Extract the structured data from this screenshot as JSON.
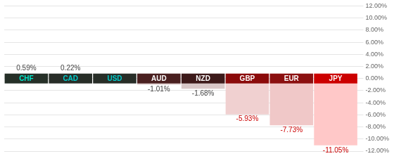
{
  "chart_data": {
    "type": "bar",
    "categories": [
      "CHF",
      "CAD",
      "USD",
      "AUD",
      "NZD",
      "GBP",
      "EUR",
      "JPY"
    ],
    "values": [
      0.59,
      0.22,
      0.0,
      -1.01,
      -1.68,
      -5.93,
      -7.73,
      -11.05
    ],
    "value_labels": [
      "0.59%",
      "0.22%",
      null,
      "-1.01%",
      "-1.68%",
      "-5.93%",
      "-7.73%",
      "-11.05%"
    ],
    "data_labels": true,
    "colors": [
      "#d0d0d0",
      "#d0d0d0",
      "#d0d0d0",
      "#dfd0d0",
      "#d8c8c8",
      "#f0d0d0",
      "#f0c8c8",
      "#ffc8c8"
    ],
    "ylim": [
      -12,
      12
    ],
    "yticks": [
      {
        "value": -12,
        "label": "-12.00%"
      },
      {
        "value": -10,
        "label": "-10.00%"
      },
      {
        "value": -8,
        "label": "-8.00%"
      },
      {
        "value": -6,
        "label": "-6.00%"
      },
      {
        "value": -4,
        "label": "-4.00%"
      },
      {
        "value": -2,
        "label": "-2.00%"
      },
      {
        "value": 0,
        "label": "0.00%"
      },
      {
        "value": 2,
        "label": "2.00%"
      },
      {
        "value": 4,
        "label": "4.00%"
      },
      {
        "value": 6,
        "label": "6.00%"
      },
      {
        "value": 8,
        "label": "8.00%"
      },
      {
        "value": 10,
        "label": "10.00%"
      },
      {
        "value": 12,
        "label": "12.00%"
      }
    ],
    "grid": true
  }
}
